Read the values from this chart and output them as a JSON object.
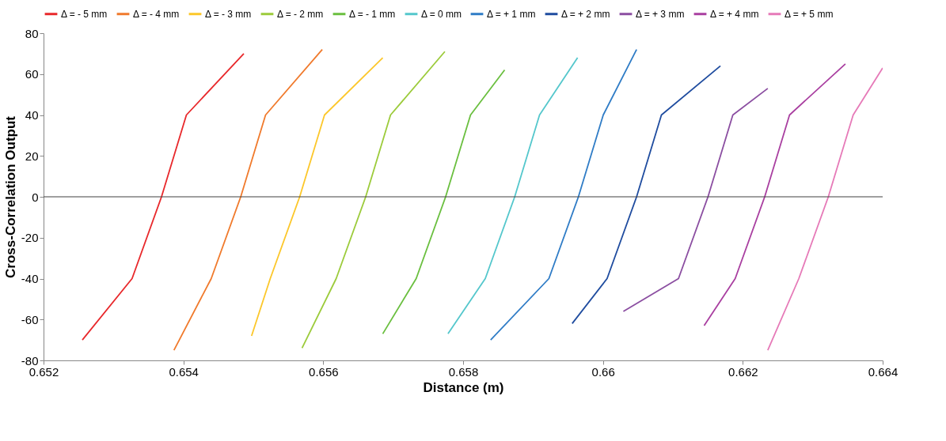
{
  "chart_data": {
    "type": "line",
    "xlabel": "Distance (m)",
    "ylabel": "Cross-Correlation Output",
    "xlim": [
      0.652,
      0.664
    ],
    "xticks": [
      0.652,
      0.654,
      0.656,
      0.658,
      {
        "value": 0.66,
        "label": "0.66"
      },
      0.662,
      0.664
    ],
    "ylim": [
      -80,
      80
    ],
    "yticks": [
      -80,
      -60,
      -40,
      -20,
      0,
      20,
      40,
      60,
      80
    ],
    "grid": false,
    "legend": "top",
    "line_style": "solid",
    "marker": "none",
    "ref_lines": [
      {
        "axis": "y",
        "value": 0,
        "color": "#404040"
      }
    ],
    "series": [
      {
        "name": "Δ = - 5 mm",
        "color": "#e8282b",
        "x": [
          0.652555,
          0.653266,
          0.653687,
          0.654043,
          0.654864
        ],
        "values": [
          -70,
          -40,
          0,
          40,
          70
        ]
      },
      {
        "name": "Δ = - 4 mm",
        "color": "#f07a2c",
        "x": [
          0.653865,
          0.654398,
          0.65482,
          0.655175,
          0.655986
        ],
        "values": [
          -75,
          -40,
          0,
          40,
          72
        ]
      },
      {
        "name": "Δ = - 3 mm",
        "color": "#fcc72a",
        "x": [
          0.654975,
          0.655242,
          0.655663,
          0.656018,
          0.656851
        ],
        "values": [
          -68,
          -40,
          0,
          40,
          68
        ]
      },
      {
        "name": "Δ = - 2 mm",
        "color": "#9ccb3b",
        "x": [
          0.655697,
          0.656185,
          0.656607,
          0.656962,
          0.657739
        ],
        "values": [
          -74,
          -40,
          0,
          40,
          71
        ]
      },
      {
        "name": "Δ = - 1 mm",
        "color": "#6abf3f",
        "x": [
          0.656851,
          0.657329,
          0.65775,
          0.658106,
          0.658594
        ],
        "values": [
          -67,
          -40,
          0,
          40,
          62
        ]
      },
      {
        "name": "Δ = 0 mm",
        "color": "#54c7cc",
        "x": [
          0.657784,
          0.658317,
          0.658738,
          0.659093,
          0.659637
        ],
        "values": [
          -67,
          -40,
          0,
          40,
          68
        ]
      },
      {
        "name": "Δ = + 1 mm",
        "color": "#2f7cc6",
        "x": [
          0.658394,
          0.659227,
          0.659649,
          0.660004,
          0.660481
        ],
        "values": [
          -70,
          -40,
          0,
          40,
          72
        ]
      },
      {
        "name": "Δ = + 2 mm",
        "color": "#1f4c9f",
        "x": [
          0.65956,
          0.660059,
          0.660481,
          0.660836,
          0.66168
        ],
        "values": [
          -62,
          -40,
          0,
          40,
          64
        ]
      },
      {
        "name": "Δ = + 3 mm",
        "color": "#8b4ea1",
        "x": [
          0.660292,
          0.66108,
          0.661502,
          0.661857,
          0.662357
        ],
        "values": [
          -56,
          -40,
          0,
          40,
          53
        ]
      },
      {
        "name": "Δ = + 4 mm",
        "color": "#a93fa0",
        "x": [
          0.661447,
          0.661891,
          0.662313,
          0.662668,
          0.663467
        ],
        "values": [
          -63,
          -40,
          0,
          40,
          65
        ]
      },
      {
        "name": "Δ = + 5 mm",
        "color": "#e67ab8",
        "x": [
          0.662357,
          0.662801,
          0.663223,
          0.663578,
          0.664
        ],
        "values": [
          -75,
          -40,
          0,
          40,
          63
        ]
      }
    ]
  }
}
